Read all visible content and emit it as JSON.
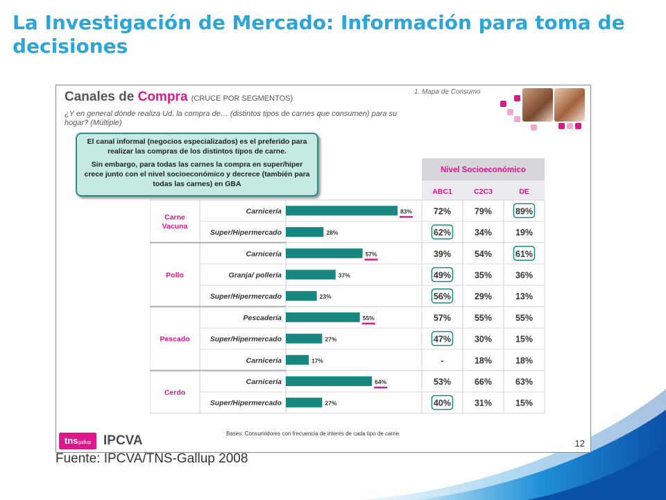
{
  "slide": {
    "title": "La Investigación de Mercado: Información para toma de decisiones",
    "source": "Fuente: IPCVA/TNS-Gallup 2008"
  },
  "panel": {
    "title_part1": "Canales de ",
    "title_part2": "Compra",
    "title_part3": "(CRUCE POR SEGMENTOS)",
    "section": "1. Mapa de Consumo",
    "question": "¿Y en general dónde realiza Ud. la compra de… (distintos tipos de carnes que consumen) para su hogar? (Múltiple)",
    "callout_p1": "El canal informal (negocios especializados) es el preferido para realizar las compras de los distintos tipos de carne.",
    "callout_p2": "Sin embargo, para todas las carnes la compra en super/hiper crece junto con el nivel socioeconómico y decrece (también para todas las carnes) en GBA",
    "bases": "Bases: Consumidores con frecuencia de interés de cada tipo de carne",
    "page_number": "12",
    "logo_tns": "tns",
    "logo_tns_sub": "gallup",
    "logo_ipcva": "IPCVA"
  },
  "colors": {
    "bar": "#17877f",
    "accent": "#e0168c",
    "title": "#2aa6d8",
    "header_fill": "#d6d6dc",
    "label_pink": "#e0168c",
    "circle": "#17877f"
  },
  "chart_data": {
    "type": "bar",
    "orientation": "horizontal",
    "xlim": [
      0,
      100
    ],
    "ses_header": "Nivel Socioeconómico",
    "ses_columns": [
      "ABC1",
      "C2C3",
      "DE"
    ],
    "groups": [
      {
        "name": "Carne Vacuna",
        "rows": [
          {
            "channel": "Carnicería",
            "value": 83,
            "label": "83%",
            "underline": true,
            "ses": [
              "72%",
              "79%",
              "89%"
            ],
            "circled": [
              false,
              false,
              true
            ]
          },
          {
            "channel": "Super/Hipermercado",
            "value": 28,
            "label": "28%",
            "underline": false,
            "ses": [
              "62%",
              "34%",
              "19%"
            ],
            "circled": [
              true,
              false,
              false
            ]
          }
        ]
      },
      {
        "name": "Pollo",
        "rows": [
          {
            "channel": "Carnicería",
            "value": 57,
            "label": "57%",
            "underline": true,
            "ses": [
              "39%",
              "54%",
              "61%"
            ],
            "circled": [
              false,
              false,
              true
            ]
          },
          {
            "channel": "Granja/ pollería",
            "value": 37,
            "label": "37%",
            "underline": false,
            "ses": [
              "49%",
              "35%",
              "36%"
            ],
            "circled": [
              true,
              false,
              false
            ]
          },
          {
            "channel": "Super/Hipermercado",
            "value": 23,
            "label": "23%",
            "underline": false,
            "ses": [
              "56%",
              "29%",
              "13%"
            ],
            "circled": [
              true,
              false,
              false
            ]
          }
        ]
      },
      {
        "name": "Pescado",
        "rows": [
          {
            "channel": "Pescadería",
            "value": 55,
            "label": "55%",
            "underline": true,
            "ses": [
              "57%",
              "55%",
              "55%"
            ],
            "circled": [
              false,
              false,
              false
            ]
          },
          {
            "channel": "Super/Hipermercado",
            "value": 27,
            "label": "27%",
            "underline": false,
            "ses": [
              "47%",
              "30%",
              "15%"
            ],
            "circled": [
              true,
              false,
              false
            ]
          },
          {
            "channel": "Carnicería",
            "value": 17,
            "label": "17%",
            "underline": false,
            "ses": [
              "-",
              "18%",
              "18%"
            ],
            "circled": [
              false,
              false,
              false
            ]
          }
        ]
      },
      {
        "name": "Cerdo",
        "rows": [
          {
            "channel": "Carnicería",
            "value": 64,
            "label": "64%",
            "underline": true,
            "ses": [
              "53%",
              "66%",
              "63%"
            ],
            "circled": [
              false,
              false,
              false
            ]
          },
          {
            "channel": "Super/Hipermercado",
            "value": 27,
            "label": "27%",
            "underline": false,
            "ses": [
              "40%",
              "31%",
              "15%"
            ],
            "circled": [
              true,
              false,
              false
            ]
          }
        ]
      }
    ]
  }
}
